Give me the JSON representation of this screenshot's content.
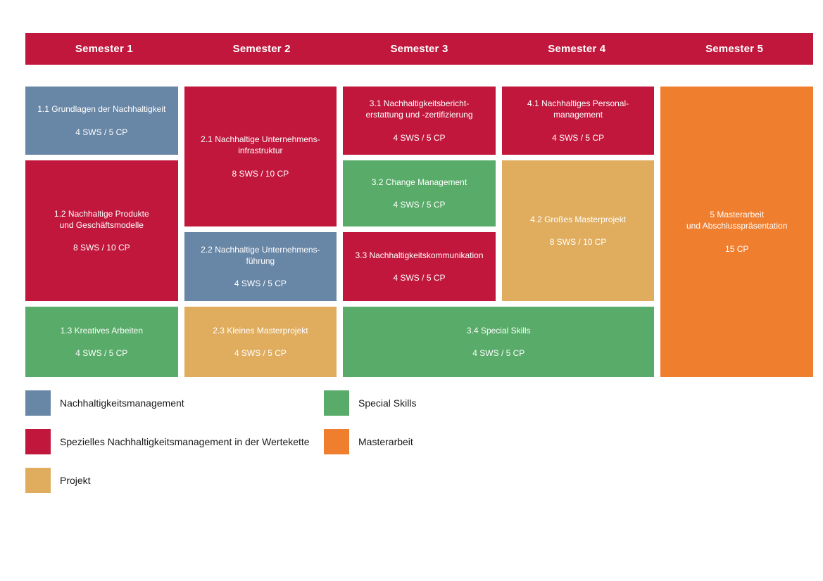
{
  "header": {
    "semesters": [
      "Semester 1",
      "Semester 2",
      "Semester 3",
      "Semester 4",
      "Semester 5"
    ]
  },
  "palette": {
    "header_bg": "#C1173C",
    "categories": {
      "nachhaltigkeitsmanagement": "#6886A6",
      "wertekette": "#C1173C",
      "projekt": "#E0AD5F",
      "special_skills": "#58AB68",
      "masterarbeit": "#F07E2F"
    }
  },
  "modules": [
    {
      "id": "1.1",
      "semester": 1,
      "row": 1,
      "rowspan": 1,
      "colspan": 1,
      "category": "nachhaltigkeitsmanagement",
      "title_lines": [
        "1.1 Grundlagen der Nachhaltigkeit"
      ],
      "credits": "4 SWS / 5 CP"
    },
    {
      "id": "1.2",
      "semester": 1,
      "row": 2,
      "rowspan": 2,
      "colspan": 1,
      "category": "wertekette",
      "title_lines": [
        "1.2 Nachhaltige Produkte",
        "und Geschäftsmodelle"
      ],
      "credits": "8 SWS / 10 CP"
    },
    {
      "id": "1.3",
      "semester": 1,
      "row": 4,
      "rowspan": 1,
      "colspan": 1,
      "category": "special_skills",
      "title_lines": [
        "1.3 Kreatives Arbeiten"
      ],
      "credits": "4 SWS / 5 CP"
    },
    {
      "id": "2.1",
      "semester": 2,
      "row": 1,
      "rowspan": 2,
      "colspan": 1,
      "category": "wertekette",
      "title_lines": [
        "2.1 Nachhaltige Unternehmens-",
        "infrastruktur"
      ],
      "credits": "8 SWS / 10 CP"
    },
    {
      "id": "2.2",
      "semester": 2,
      "row": 3,
      "rowspan": 1,
      "colspan": 1,
      "category": "nachhaltigkeitsmanagement",
      "title_lines": [
        "2.2 Nachhaltige Unternehmens-",
        "führung"
      ],
      "credits": "4 SWS / 5 CP"
    },
    {
      "id": "2.3",
      "semester": 2,
      "row": 4,
      "rowspan": 1,
      "colspan": 1,
      "category": "projekt",
      "title_lines": [
        "2.3 Kleines Masterprojekt"
      ],
      "credits": "4 SWS / 5 CP"
    },
    {
      "id": "3.1",
      "semester": 3,
      "row": 1,
      "rowspan": 1,
      "colspan": 1,
      "category": "wertekette",
      "title_lines": [
        "3.1 Nachhaltigkeitsbericht-",
        "erstattung und -zertifizierung"
      ],
      "credits": "4 SWS / 5 CP"
    },
    {
      "id": "3.2",
      "semester": 3,
      "row": 2,
      "rowspan": 1,
      "colspan": 1,
      "category": "special_skills",
      "title_lines": [
        "3.2 Change Management"
      ],
      "credits": "4 SWS / 5 CP"
    },
    {
      "id": "3.3",
      "semester": 3,
      "row": 3,
      "rowspan": 1,
      "colspan": 1,
      "category": "wertekette",
      "title_lines": [
        "3.3 Nachhaltigkeitskommunikation"
      ],
      "credits": "4 SWS / 5 CP"
    },
    {
      "id": "3.4",
      "semester": 3,
      "row": 4,
      "rowspan": 1,
      "colspan": 2,
      "category": "special_skills",
      "title_lines": [
        "3.4 Special Skills"
      ],
      "credits": "4 SWS / 5 CP"
    },
    {
      "id": "4.1",
      "semester": 4,
      "row": 1,
      "rowspan": 1,
      "colspan": 1,
      "category": "wertekette",
      "title_lines": [
        "4.1 Nachhaltiges Personal-",
        "management"
      ],
      "credits": "4 SWS / 5 CP"
    },
    {
      "id": "4.2",
      "semester": 4,
      "row": 2,
      "rowspan": 2,
      "colspan": 1,
      "category": "projekt",
      "title_lines": [
        "4.2 Großes Masterprojekt"
      ],
      "credits": "8 SWS / 10 CP"
    },
    {
      "id": "5",
      "semester": 5,
      "row": 1,
      "rowspan": 4,
      "colspan": 1,
      "category": "masterarbeit",
      "title_lines": [
        "5 Masterarbeit",
        "und Abschlusspräsentation"
      ],
      "credits": "15 CP"
    }
  ],
  "legend": {
    "columns": [
      [
        {
          "category": "nachhaltigkeitsmanagement",
          "label": "Nachhaltigkeitsmanagement"
        },
        {
          "category": "wertekette",
          "label": "Spezielles Nachhaltigkeitsmanagement in der Wertekette"
        },
        {
          "category": "projekt",
          "label": "Projekt"
        }
      ],
      [
        {
          "category": "special_skills",
          "label": "Special Skills"
        },
        {
          "category": "masterarbeit",
          "label": "Masterarbeit"
        }
      ]
    ]
  }
}
